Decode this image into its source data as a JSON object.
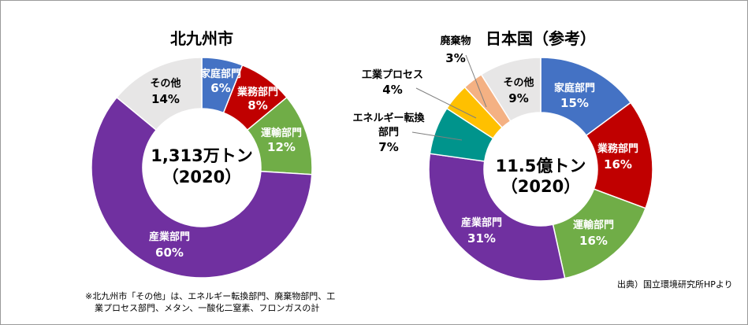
{
  "chart_data": [
    {
      "type": "pie",
      "title": "北九州市",
      "center_text": [
        "1,313万トン",
        "（2020）"
      ],
      "slices": [
        {
          "label": "家庭部門",
          "value": 6,
          "pct_label": "6%",
          "color": "#4472C4"
        },
        {
          "label": "業務部門",
          "value": 8,
          "pct_label": "8%",
          "color": "#C00000"
        },
        {
          "label": "運輸部門",
          "value": 12,
          "pct_label": "12%",
          "color": "#70AD47"
        },
        {
          "label": "産業部門",
          "value": 60,
          "pct_label": "60%",
          "color": "#7030A0"
        },
        {
          "label": "その他",
          "value": 14,
          "pct_label": "14%",
          "color": "#E7E6E6"
        }
      ]
    },
    {
      "type": "pie",
      "title": "日本国（参考）",
      "center_text": [
        "11.5億トン",
        "（2020）"
      ],
      "slices": [
        {
          "label": "家庭部門",
          "value": 15,
          "pct_label": "15%",
          "color": "#4472C4"
        },
        {
          "label": "業務部門",
          "value": 16,
          "pct_label": "16%",
          "color": "#C00000"
        },
        {
          "label": "運輸部門",
          "value": 16,
          "pct_label": "16%",
          "color": "#70AD47"
        },
        {
          "label": "産業部門",
          "value": 31,
          "pct_label": "31%",
          "color": "#7030A0"
        },
        {
          "label": "エネルギー転換部門",
          "value": 7,
          "pct_label": "7%",
          "color": "#00948C"
        },
        {
          "label": "工業プロセス",
          "value": 4,
          "pct_label": "4%",
          "color": "#FFC000"
        },
        {
          "label": "廃棄物",
          "value": 3,
          "pct_label": "3%",
          "color": "#F4B183"
        },
        {
          "label": "その他",
          "value": 9,
          "pct_label": "9%",
          "color": "#E7E6E6"
        }
      ]
    }
  ],
  "notes": {
    "footnote_line1": "※北九州市「その他」は、エネルギー転換部門、廃棄物部門、工",
    "footnote_line2": "業プロセス部門、メタン、一酸化二窒素、フロンガスの計",
    "source": "出典）国立環境研究所HPより"
  }
}
